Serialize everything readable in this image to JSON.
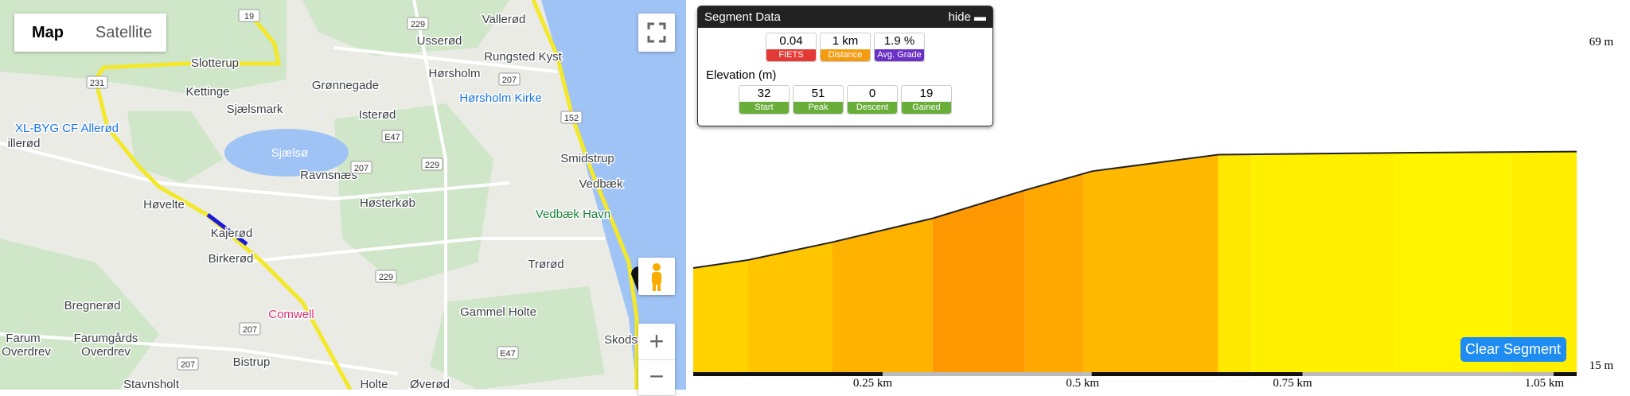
{
  "map": {
    "buttons": [
      "Map",
      "Satellite"
    ],
    "labels": [
      "Vallerød",
      "Usserød",
      "Rungsted Kyst",
      "Slotterup",
      "Hørsholm",
      "Kettinge",
      "Grønnegade",
      "Hørsholm Kirke",
      "Sjælsmark",
      "XL-BYG CF Allerød",
      "Isterød",
      "illerød",
      "Sjælsø",
      "Smidstrup",
      "Ravnsnæs",
      "Vedbæk",
      "Høsterkøb",
      "Høvelte",
      "Vedbæk Havn",
      "Kajerød",
      "Birkerød",
      "Trørød",
      "Bregnerød",
      "Comwell",
      "Gammel Holte",
      "Farum",
      "Farumgårds",
      "Skods",
      "Overdrev",
      "Overdrev",
      "Bistrup",
      "Stavnsholt",
      "Holte",
      "Øverød"
    ],
    "roads": [
      "19",
      "229",
      "207",
      "231",
      "E47",
      "207",
      "229",
      "152",
      "229",
      "207",
      "207",
      "E47"
    ]
  },
  "segment_data": {
    "title": "Segment Data",
    "hide": "hide",
    "metrics": [
      {
        "value": 0.04,
        "label": "FIETS",
        "color": "#e53935"
      },
      {
        "value": "1 km",
        "label": "Distance",
        "color": "#f39c12"
      },
      {
        "value": "1.9 %",
        "label": "Avg. Grade",
        "color": "#6a2fc4"
      }
    ],
    "elevation_title": "Elevation (m)",
    "elevation": [
      {
        "value": 32,
        "label": "Start"
      },
      {
        "value": 51,
        "label": "Peak"
      },
      {
        "value": 0,
        "label": "Descent"
      },
      {
        "value": 19,
        "label": "Gained"
      }
    ],
    "elevation_color": "#6aae3a"
  },
  "chart_data": {
    "type": "area",
    "x": [
      0.025,
      0.09,
      0.19,
      0.31,
      0.42,
      0.5,
      0.65,
      0.86,
      1.077
    ],
    "values": [
      32,
      33.3,
      36.2,
      40.1,
      44.7,
      47.8,
      50.5,
      50.8,
      51
    ],
    "xlim": [
      0.025,
      1.077
    ],
    "ylim": [
      15,
      69
    ],
    "xticks": [
      {
        "value": 0.25,
        "label": "0.25 km"
      },
      {
        "value": 0.5,
        "label": "0.5 km"
      },
      {
        "value": 0.75,
        "label": "0.75 km"
      },
      {
        "value": 1.05,
        "label": "1.05 km"
      }
    ],
    "yticks": [
      {
        "value": 69,
        "label": "69 m"
      },
      {
        "value": 15,
        "label": "15 m"
      }
    ],
    "bands": [
      {
        "x0": 0.025,
        "x1": 0.09,
        "color": "#ffd200"
      },
      {
        "x0": 0.09,
        "x1": 0.19,
        "color": "#ffc600"
      },
      {
        "x0": 0.19,
        "x1": 0.31,
        "color": "#ffb300"
      },
      {
        "x0": 0.31,
        "x1": 0.42,
        "color": "#ff9800"
      },
      {
        "x0": 0.42,
        "x1": 0.49,
        "color": "#ffa800"
      },
      {
        "x0": 0.49,
        "x1": 0.65,
        "color": "#ffb900"
      },
      {
        "x0": 0.65,
        "x1": 0.69,
        "color": "#ffe800"
      },
      {
        "x0": 0.69,
        "x1": 0.86,
        "color": "#fff000"
      },
      {
        "x0": 0.86,
        "x1": 1.0,
        "color": "#fff400"
      },
      {
        "x0": 1.0,
        "x1": 1.077,
        "color": "#ffee00"
      }
    ],
    "button": "Clear Segment"
  }
}
